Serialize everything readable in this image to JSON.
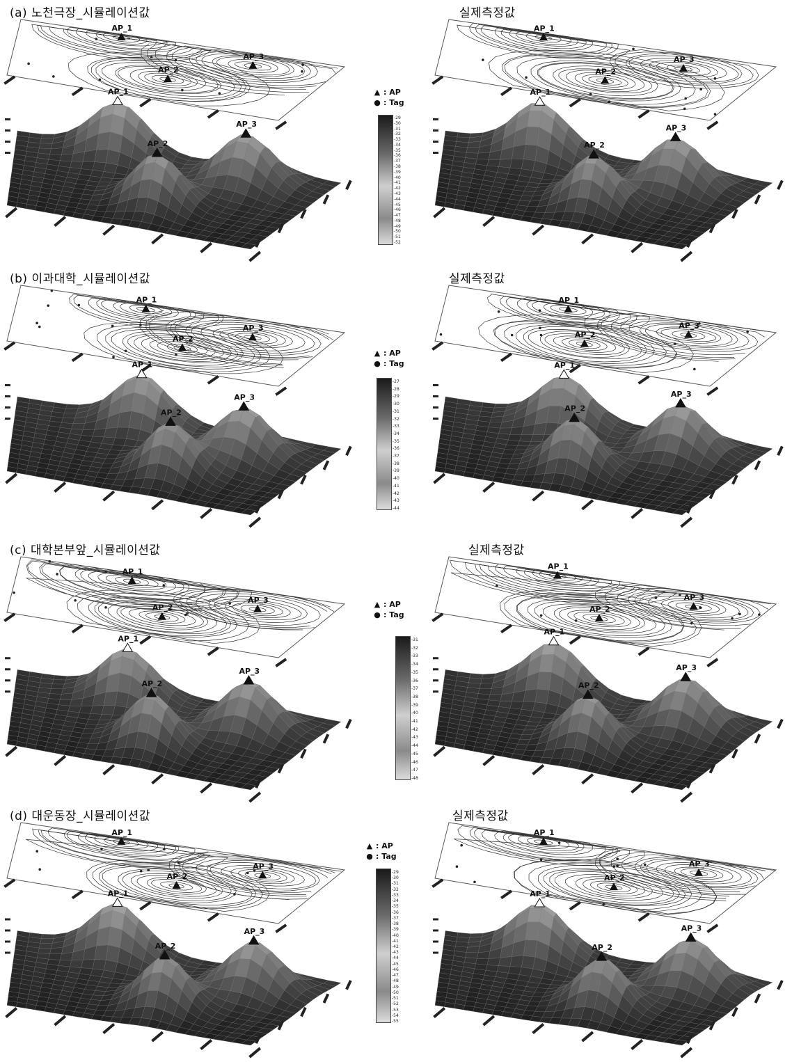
{
  "rows": [
    {
      "caption_left": "(a)  노천극장_시뮬레이션값",
      "caption_right": "실제측정값",
      "ap_labels": [
        "AP_1",
        "AP_2",
        "AP_3"
      ],
      "legend": {
        "ap": ": AP",
        "tag": ": Tag"
      },
      "colorbar": [
        "-29",
        "-30",
        "-31",
        "-32",
        "-33",
        "-34",
        "-35",
        "-36",
        "-37",
        "-38",
        "-39",
        "-40",
        "-41",
        "-42",
        "-43",
        "-44",
        "-45",
        "-46",
        "-47",
        "-48",
        "-49",
        "-50",
        "-51",
        "-52"
      ]
    },
    {
      "caption_left": "(b)  이과대학_시뮬레이션값",
      "caption_right": "실제측정값",
      "ap_labels": [
        "AP_1",
        "AP_2",
        "AP_3"
      ],
      "legend": {
        "ap": ": AP",
        "tag": ": Tag"
      },
      "colorbar": [
        "-27",
        "-28",
        "-29",
        "-30",
        "-31",
        "-32",
        "-33",
        "-34",
        "-35",
        "-36",
        "-37",
        "-38",
        "-39",
        "-40",
        "-41",
        "-42",
        "-43",
        "-44"
      ]
    },
    {
      "caption_left": "(c)  대학본부앞_시뮬레이션값",
      "caption_right": "실제측정값",
      "ap_labels": [
        "AP_1",
        "AP_2",
        "AP_3"
      ],
      "legend": {
        "ap": ": AP",
        "tag": ": Tag"
      },
      "colorbar": [
        "-31",
        "-32",
        "-33",
        "-34",
        "-35",
        "-36",
        "-37",
        "-38",
        "-39",
        "-40",
        "-41",
        "-42",
        "-43",
        "-44",
        "-45",
        "-46",
        "-47",
        "-48"
      ]
    },
    {
      "caption_left": "(d)  대운동장_시뮬레이션값",
      "caption_right": "실제측정값",
      "ap_labels": [
        "AP_1",
        "AP_2",
        "AP_3"
      ],
      "legend": {
        "ap": ": AP",
        "tag": ": Tag"
      },
      "colorbar": [
        "-29",
        "-30",
        "-31",
        "-32",
        "-33",
        "-34",
        "-35",
        "-36",
        "-37",
        "-38",
        "-39",
        "-40",
        "-41",
        "-42",
        "-43",
        "-44",
        "-45",
        "-46",
        "-47",
        "-48",
        "-49",
        "-50",
        "-51",
        "-52",
        "-53",
        "-54",
        "-55"
      ]
    }
  ]
}
